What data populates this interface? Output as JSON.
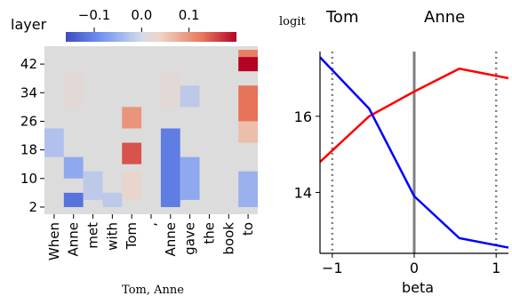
{
  "chart_data": [
    {
      "type": "heatmap",
      "ylabel": "layer",
      "xlabel": "Tom,  Anne",
      "x_tokens": [
        "When",
        "Anne",
        "met",
        "with",
        "Tom",
        ",",
        "Anne",
        "gave",
        "the",
        "book",
        "to"
      ],
      "y_ticks": [
        2,
        10,
        18,
        26,
        34,
        42
      ],
      "colorbar": {
        "ticks": [
          "−0.1",
          "0.0",
          "0.1"
        ],
        "min": -0.16,
        "max": 0.2,
        "colormap": "coolwarm"
      },
      "cells": [
        {
          "col": 0,
          "from": 16,
          "to": 24,
          "value": -0.03
        },
        {
          "col": 1,
          "from": 2,
          "to": 6,
          "value": -0.12
        },
        {
          "col": 1,
          "from": 10,
          "to": 16,
          "value": -0.06
        },
        {
          "col": 1,
          "from": 30,
          "to": 40,
          "value": 0.02
        },
        {
          "col": 2,
          "from": 4,
          "to": 12,
          "value": -0.02
        },
        {
          "col": 3,
          "from": 2,
          "to": 6,
          "value": -0.02
        },
        {
          "col": 4,
          "from": 14,
          "to": 20,
          "value": 0.15
        },
        {
          "col": 4,
          "from": 24,
          "to": 30,
          "value": 0.1
        },
        {
          "col": 4,
          "from": 4,
          "to": 12,
          "value": 0.03
        },
        {
          "col": 6,
          "from": 2,
          "to": 24,
          "value": -0.11
        },
        {
          "col": 6,
          "from": 30,
          "to": 40,
          "value": 0.02
        },
        {
          "col": 7,
          "from": 4,
          "to": 16,
          "value": -0.06
        },
        {
          "col": 7,
          "from": 30,
          "to": 36,
          "value": -0.02
        },
        {
          "col": 10,
          "from": 40,
          "to": 44,
          "value": 0.2
        },
        {
          "col": 10,
          "from": 44,
          "to": 46,
          "value": 0.12
        },
        {
          "col": 10,
          "from": 26,
          "to": 36,
          "value": 0.13
        },
        {
          "col": 10,
          "from": 20,
          "to": 26,
          "value": 0.06
        },
        {
          "col": 10,
          "from": 2,
          "to": 12,
          "value": -0.05
        }
      ]
    },
    {
      "type": "line",
      "xlabel": "beta",
      "ylabel": "logit",
      "x_ticks": [
        "−1",
        "0",
        "1"
      ],
      "y_ticks": [
        "14",
        "16"
      ],
      "xlim": [
        -1.15,
        1.15
      ],
      "ylim": [
        12.4,
        17.7
      ],
      "vlines": [
        {
          "x": -1,
          "style": "dotted"
        },
        {
          "x": 0,
          "style": "solid"
        },
        {
          "x": 1,
          "style": "dotted"
        }
      ],
      "series": [
        {
          "name": "Tom",
          "color": "#ff0000",
          "x": [
            -1.15,
            -0.55,
            0.0,
            0.55,
            1.15
          ],
          "y": [
            14.8,
            16.0,
            16.65,
            17.25,
            17.0
          ]
        },
        {
          "name": "Anne",
          "color": "#0000ff",
          "x": [
            -1.15,
            -0.55,
            0.0,
            0.55,
            1.15
          ],
          "y": [
            17.55,
            16.2,
            13.9,
            12.8,
            12.55
          ]
        }
      ]
    }
  ]
}
